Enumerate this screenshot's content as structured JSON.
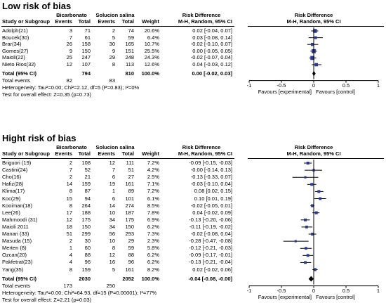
{
  "headers": {
    "study": "Study or Subgroup",
    "group1": "Bicarbonato",
    "group2": "Solucion salina",
    "events": "Events",
    "total": "Total",
    "weight": "Weight",
    "rd": "Risk Difference",
    "rd_method": "M-H, Random, 95% CI"
  },
  "chart_data": [
    {
      "type": "forest",
      "title": "Low risk of bias",
      "xlim": [
        -1,
        1
      ],
      "ticks": [
        "-1",
        "-0.5",
        "0",
        "0.5",
        "1"
      ],
      "favours_left": "Favours [experimental]",
      "favours_right": "Favours [control]",
      "studies": [
        {
          "name": "Adolph(21)",
          "e1": "3",
          "t1": "71",
          "e2": "2",
          "t2": "74",
          "weight": "20.6%",
          "ci_text": "0.02 [-0.04, 0.07]",
          "rd": 0.02,
          "lo": -0.04,
          "hi": 0.07
        },
        {
          "name": "Boucek(30)",
          "e1": "7",
          "t1": "61",
          "e2": "5",
          "t2": "59",
          "weight": "6.4%",
          "ci_text": "0.03 [-0.08, 0.14]",
          "rd": 0.03,
          "lo": -0.08,
          "hi": 0.14
        },
        {
          "name": "Brar(34)",
          "e1": "26",
          "t1": "158",
          "e2": "30",
          "t2": "165",
          "weight": "10.7%",
          "ci_text": "-0.02 [-0.10, 0.07]",
          "rd": -0.02,
          "lo": -0.1,
          "hi": 0.07
        },
        {
          "name": "Gomes(27)",
          "e1": "9",
          "t1": "150",
          "e2": "9",
          "t2": "151",
          "weight": "25.5%",
          "ci_text": "0.00 [-0.05, 0.05]",
          "rd": 0.0,
          "lo": -0.05,
          "hi": 0.05
        },
        {
          "name": "Maioli(22)",
          "e1": "25",
          "t1": "247",
          "e2": "29",
          "t2": "248",
          "weight": "24.3%",
          "ci_text": "-0.02 [-0.07, 0.04]",
          "rd": -0.02,
          "lo": -0.07,
          "hi": 0.04
        },
        {
          "name": "Nieto Rios(32)",
          "e1": "12",
          "t1": "107",
          "e2": "8",
          "t2": "113",
          "weight": "12.6%",
          "ci_text": "0.04 [-0.03, 0.12]",
          "rd": 0.04,
          "lo": -0.03,
          "hi": 0.12
        }
      ],
      "total": {
        "label": "Total (95% CI)",
        "t1": "794",
        "t2": "810",
        "weight": "100.0%",
        "ci_text": "0.00 [-0.02, 0.03]",
        "rd": 0.0,
        "lo": -0.02,
        "hi": 0.03
      },
      "total_events": {
        "label": "Total events",
        "e1": "82",
        "e2": "83"
      },
      "heterogeneity": "Heterogeneity: Tau²=0.00; Chi²=2.12, df=5 (P=0.83); I²=0%",
      "overall": "Test for overall effect: Z=0.35 (p=0.73)"
    },
    {
      "type": "forest",
      "title": "Hight risk of bias",
      "xlim": [
        -1,
        1
      ],
      "ticks": [
        "-1",
        "-0.5",
        "0",
        "0.5",
        "1"
      ],
      "favours_left": "Favours [experimental]",
      "favours_right": "Favours [control]",
      "studies": [
        {
          "name": "Briguori (19)",
          "e1": "2",
          "t1": "108",
          "e2": "12",
          "t2": "111",
          "weight": "7.2%",
          "ci_text": "-0.09 [-0.15, -0.03]",
          "rd": -0.09,
          "lo": -0.15,
          "hi": -0.03
        },
        {
          "name": "Castini(24)",
          "e1": "7",
          "t1": "52",
          "e2": "7",
          "t2": "51",
          "weight": "4.2%",
          "ci_text": "-0.00 [-0.14, 0.13]",
          "rd": 0.0,
          "lo": -0.14,
          "hi": 0.13
        },
        {
          "name": "Cho(16)",
          "e1": "2",
          "t1": "21",
          "e2": "6",
          "t2": "27",
          "weight": "2.5%",
          "ci_text": "-0.13 [-0.33, 0.07]",
          "rd": -0.13,
          "lo": -0.33,
          "hi": 0.07
        },
        {
          "name": "Hafiz(28)",
          "e1": "14",
          "t1": "159",
          "e2": "19",
          "t2": "161",
          "weight": "7.1%",
          "ci_text": "-0.03 [-0.10, 0.04]",
          "rd": -0.03,
          "lo": -0.1,
          "hi": 0.04
        },
        {
          "name": "Klima(17)",
          "e1": "8",
          "t1": "87",
          "e2": "1",
          "t2": "89",
          "weight": "7.2%",
          "ci_text": "0.08 [0.02, 0.15]",
          "rd": 0.08,
          "lo": 0.02,
          "hi": 0.15
        },
        {
          "name": "Koc(29)",
          "e1": "15",
          "t1": "94",
          "e2": "6",
          "t2": "101",
          "weight": "6.1%",
          "ci_text": "0.10 [0.01, 0.19]",
          "rd": 0.1,
          "lo": 0.01,
          "hi": 0.19
        },
        {
          "name": "Kooiman(18)",
          "e1": "8",
          "t1": "264",
          "e2": "14",
          "t2": "274",
          "weight": "8.5%",
          "ci_text": "-0.02 [-0.05, 0.01]",
          "rd": -0.02,
          "lo": -0.05,
          "hi": 0.01
        },
        {
          "name": "Lee(26)",
          "e1": "17",
          "t1": "188",
          "e2": "10",
          "t2": "187",
          "weight": "7.8%",
          "ci_text": "0.04 [-0.02, 0.09]",
          "rd": 0.04,
          "lo": -0.02,
          "hi": 0.09
        },
        {
          "name": "Mahmoodi (31)",
          "e1": "12",
          "t1": "175",
          "e2": "34",
          "t2": "175",
          "weight": "6.9%",
          "ci_text": "-0.13 [-0.20, -0.06]",
          "rd": -0.13,
          "lo": -0.2,
          "hi": -0.06
        },
        {
          "name": "Maioli 2011",
          "e1": "18",
          "t1": "150",
          "e2": "34",
          "t2": "150",
          "weight": "6.2%",
          "ci_text": "-0.11 [-0.19, -0.02]",
          "rd": -0.11,
          "lo": -0.19,
          "hi": -0.02
        },
        {
          "name": "Manari (33)",
          "e1": "51",
          "t1": "299",
          "e2": "56",
          "t2": "293",
          "weight": "7.3%",
          "ci_text": "-0.02 [-0.08, 0.04]",
          "rd": -0.02,
          "lo": -0.08,
          "hi": 0.04
        },
        {
          "name": "Masuda (15)",
          "e1": "2",
          "t1": "30",
          "e2": "10",
          "t2": "29",
          "weight": "2.3%",
          "ci_text": "-0.28 [-0.47, -0.08]",
          "rd": -0.28,
          "lo": -0.47,
          "hi": -0.08
        },
        {
          "name": "Merten (8)",
          "e1": "1",
          "t1": "60",
          "e2": "8",
          "t2": "59",
          "weight": "5.8%",
          "ci_text": "-0.12 [-0.21, -0.03]",
          "rd": -0.12,
          "lo": -0.21,
          "hi": -0.03
        },
        {
          "name": "Ozcan(20)",
          "e1": "4",
          "t1": "88",
          "e2": "12",
          "t2": "88",
          "weight": "6.2%",
          "ci_text": "-0.09 [-0.17, -0.01]",
          "rd": -0.09,
          "lo": -0.17,
          "hi": -0.01
        },
        {
          "name": "Pakfetrat(23)",
          "e1": "4",
          "t1": "96",
          "e2": "16",
          "t2": "96",
          "weight": "6.2%",
          "ci_text": "-0.13 [-0.21, -0.04]",
          "rd": -0.13,
          "lo": -0.21,
          "hi": -0.04
        },
        {
          "name": "Yang(35)",
          "e1": "8",
          "t1": "159",
          "e2": "5",
          "t2": "161",
          "weight": "8.2%",
          "ci_text": "0.02 [-0.02, 0.06]",
          "rd": 0.02,
          "lo": -0.02,
          "hi": 0.06
        }
      ],
      "total": {
        "label": "Total (95% CI)",
        "t1": "2030",
        "t2": "2052",
        "weight": "100.0%",
        "ci_text": "-0.04 [-0.08, -0.00]",
        "rd": -0.04,
        "lo": -0.08,
        "hi": 0.0
      },
      "total_events": {
        "label": "Total events",
        "e1": "173",
        "e2": "250"
      },
      "heterogeneity": "Heterogeneity: Tau²=0.00; Chi²=64.93, df=15 (P=0.00001); I²=77%",
      "overall": "Test for overall effect: Z=2.21 (p=0.03)"
    }
  ]
}
